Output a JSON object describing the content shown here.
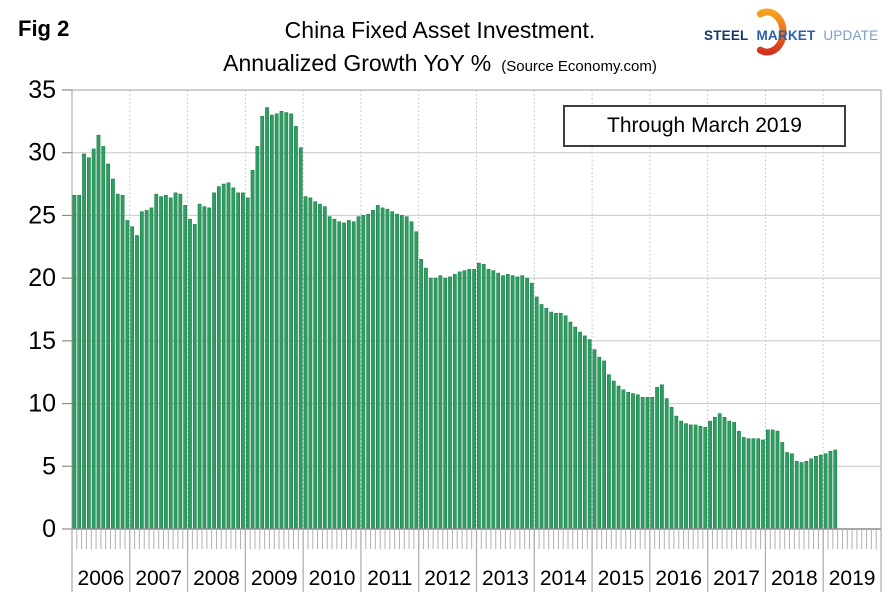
{
  "header": {
    "fig_label": "Fig 2",
    "title": "China Fixed Asset Investment.",
    "subtitle": "Annualized Growth YoY %",
    "source_note": "(Source Economy.com)"
  },
  "logo": {
    "steel": "STEEL",
    "market": "MARKET",
    "update": "UPDATE"
  },
  "annotation": {
    "label": "Through March 2019"
  },
  "colors": {
    "bar_fill": "#2f9e62",
    "bar_edge": "#1e8049",
    "grid": "#c8c8c8",
    "grid_dotted": "#bdbdbd",
    "frame": "#a3a3a3",
    "axis": "#8c8c8c",
    "tick": "#b0b0b0",
    "logo_orange_top": "#f6a21d",
    "logo_orange_mid": "#ee6d21",
    "logo_orange_bottom": "#d2311e",
    "logo_blue_dark": "#16386e",
    "logo_blue": "#2d5fa8",
    "logo_blue_light": "#7b9ccd"
  },
  "chart_data": {
    "type": "bar",
    "title": "China Fixed Asset Investment. Annualized Growth YoY %",
    "source": "Economy.com",
    "legend_note": "Through March 2019",
    "unit": "percent YoY",
    "ylim": [
      0,
      35
    ],
    "yticks": [
      0,
      5,
      10,
      15,
      20,
      25,
      30,
      35
    ],
    "grid": true,
    "year_labels": [
      "2006",
      "2007",
      "2008",
      "2009",
      "2010",
      "2011",
      "2012",
      "2013",
      "2014",
      "2015",
      "2016",
      "2017",
      "2018",
      "2019"
    ],
    "months_per_year": 12,
    "values_by_year": {
      "2006": [
        26.6,
        26.6,
        29.9,
        29.6,
        30.3,
        31.4,
        30.5,
        29.1,
        27.9,
        26.7,
        26.6,
        24.6
      ],
      "2007": [
        24.1,
        23.4,
        25.3,
        25.4,
        25.6,
        26.7,
        26.5,
        26.6,
        26.4,
        26.8,
        26.7,
        25.8
      ],
      "2008": [
        24.7,
        24.3,
        25.9,
        25.7,
        25.6,
        26.8,
        27.3,
        27.5,
        27.6,
        27.2,
        26.8,
        26.8
      ],
      "2009": [
        26.4,
        28.6,
        30.5,
        32.9,
        33.6,
        33.0,
        33.1,
        33.3,
        33.2,
        33.1,
        32.1,
        30.4
      ],
      "2010": [
        26.5,
        26.4,
        26.1,
        25.9,
        25.7,
        24.9,
        24.7,
        24.5,
        24.4,
        24.6,
        24.5,
        24.9
      ],
      "2011": [
        25.0,
        25.1,
        25.4,
        25.8,
        25.6,
        25.5,
        25.3,
        25.1,
        25.0,
        24.9,
        24.5,
        23.7
      ],
      "2012": [
        21.5,
        20.8,
        20.0,
        20.0,
        20.2,
        20.0,
        20.1,
        20.3,
        20.5,
        20.6,
        20.7,
        20.7
      ],
      "2013": [
        21.2,
        21.1,
        20.7,
        20.6,
        20.4,
        20.2,
        20.3,
        20.2,
        20.1,
        20.2,
        20.0,
        19.6
      ],
      "2014": [
        18.5,
        17.9,
        17.6,
        17.3,
        17.2,
        17.2,
        17.0,
        16.5,
        16.1,
        15.7,
        15.4,
        15.1
      ],
      "2015": [
        14.3,
        13.7,
        13.4,
        12.3,
        11.8,
        11.4,
        11.1,
        10.9,
        10.8,
        10.7,
        10.5,
        10.5
      ],
      "2016": [
        10.5,
        11.3,
        11.5,
        10.4,
        9.7,
        9.0,
        8.6,
        8.4,
        8.3,
        8.3,
        8.2,
        8.1
      ],
      "2017": [
        8.6,
        8.9,
        9.2,
        8.9,
        8.6,
        8.5,
        7.8,
        7.3,
        7.2,
        7.2,
        7.2,
        7.1
      ],
      "2018": [
        7.9,
        7.9,
        7.8,
        6.9,
        6.1,
        6.0,
        5.4,
        5.3,
        5.4,
        5.6,
        5.8,
        5.9
      ],
      "2019": [
        6.0,
        6.2,
        6.3
      ]
    }
  }
}
